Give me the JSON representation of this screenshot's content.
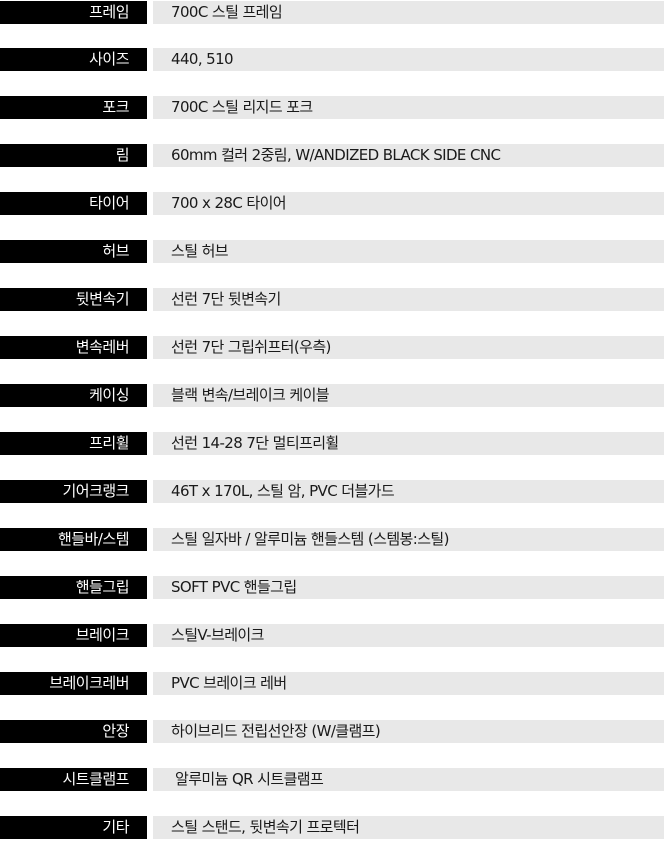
{
  "specs": [
    {
      "label": "프레임",
      "value": "700C 스틸 프레임"
    },
    {
      "label": "사이즈",
      "value": "440, 510"
    },
    {
      "label": "포크",
      "value": "700C 스틸 리지드 포크"
    },
    {
      "label": "림",
      "value": "60mm 컬러 2중림, W/ANDIZED BLACK SIDE CNC"
    },
    {
      "label": "타이어",
      "value": "700 x 28C 타이어"
    },
    {
      "label": "허브",
      "value": "스틸 허브"
    },
    {
      "label": "뒷변속기",
      "value": "선런 7단 뒷변속기"
    },
    {
      "label": "변속레버",
      "value": "선런 7단 그립쉬프터(우측)"
    },
    {
      "label": "케이싱",
      "value": "블랙 변속/브레이크 케이블"
    },
    {
      "label": "프리휠",
      "value": "선런 14-28 7단 멀티프리휠"
    },
    {
      "label": "기어크랭크",
      "value": "46T x 170L, 스틸 암, PVC 더블가드"
    },
    {
      "label": "핸들바/스템",
      "value": "스틸 일자바 / 알루미늄 핸들스템 (스템봉:스틸)"
    },
    {
      "label": "핸들그립",
      "value": "SOFT PVC 핸들그립"
    },
    {
      "label": "브레이크",
      "value": "스틸V-브레이크"
    },
    {
      "label": "브레이크레버",
      "value": "PVC 브레이크 레버"
    },
    {
      "label": "안장",
      "value": "하이브리드 전립선안장 (W/클램프)"
    },
    {
      "label": "시트클램프",
      "value": "알루미늄 QR 시트클램프"
    },
    {
      "label": "기타",
      "value": "스틸 스탠드, 뒷변속기 프로텍터"
    }
  ]
}
